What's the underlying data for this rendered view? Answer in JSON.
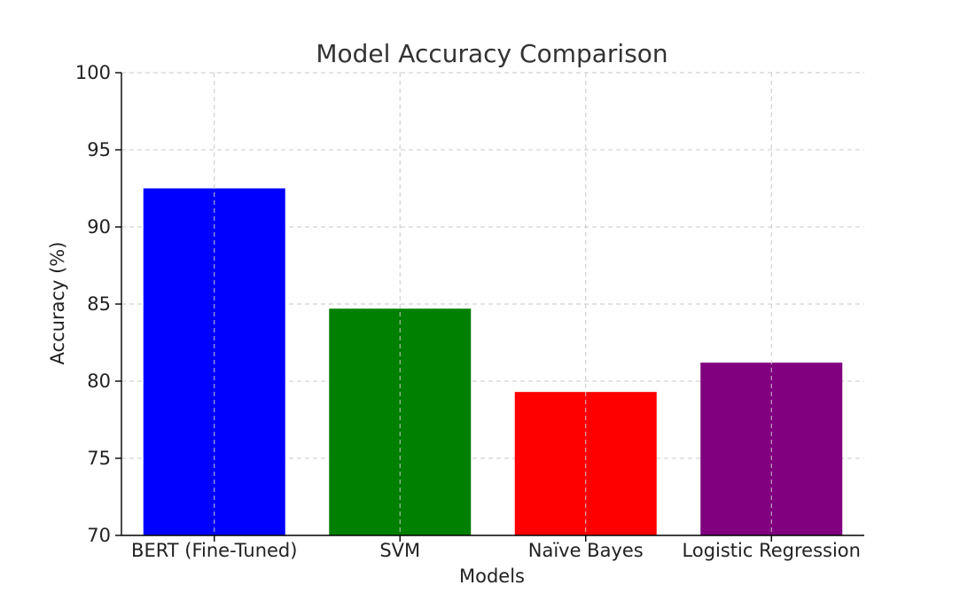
{
  "chart_data": {
    "type": "bar",
    "title": "Model Accuracy Comparison",
    "xlabel": "Models",
    "ylabel": "Accuracy (%)",
    "categories": [
      "BERT (Fine-Tuned)",
      "SVM",
      "Naïve Bayes",
      "Logistic Regression"
    ],
    "values": [
      92.5,
      84.7,
      79.3,
      81.2
    ],
    "colors": [
      "#0000ff",
      "#008000",
      "#ff0000",
      "#800080"
    ],
    "ylim": [
      70,
      100
    ],
    "yticks": [
      70,
      75,
      80,
      85,
      90,
      95,
      100
    ],
    "grid": true
  }
}
